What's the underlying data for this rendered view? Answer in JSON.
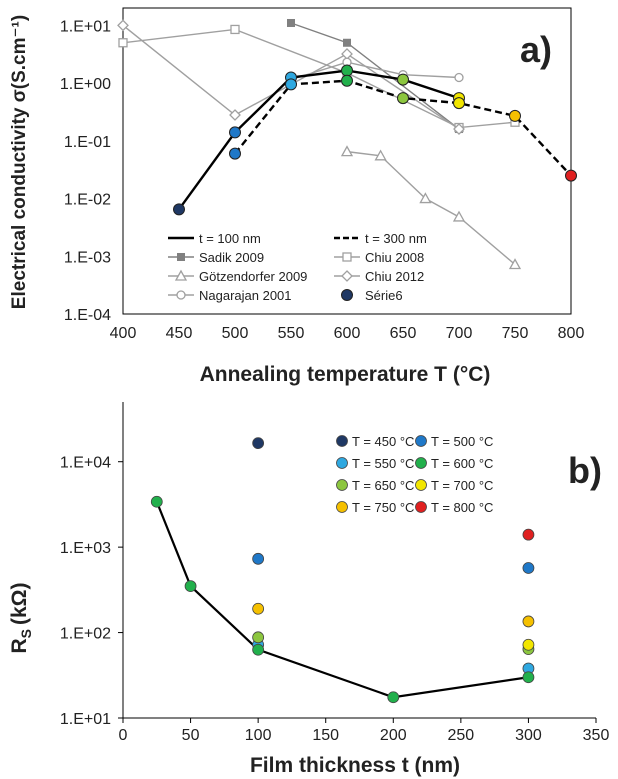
{
  "chart_data": [
    {
      "type": "line",
      "panel_label": "a)",
      "xlabel": "Annealing temperature T (°C)",
      "ylabel": "Electrical conductivity σ(S.cm⁻¹)",
      "xlim": [
        400,
        800
      ],
      "ylim": [
        0.0001,
        20
      ],
      "yscale": "log",
      "grid": false,
      "x_ticks": [
        400,
        450,
        500,
        550,
        600,
        650,
        700,
        750,
        800
      ],
      "y_ticks": [
        10,
        1,
        0.1,
        0.01,
        0.001,
        0.0001
      ],
      "y_tick_labels": [
        "1.E+01",
        "1.E+00",
        "1.E-01",
        "1.E-02",
        "1.E-03",
        "1.E-04"
      ],
      "legend_placement": "bottom-left",
      "series": [
        {
          "name": "t = 100 nm",
          "color": "#000000",
          "dash": "solid",
          "marker": "colored-circle",
          "x": [
            450,
            500,
            550,
            600,
            650,
            700
          ],
          "y": [
            0.0065,
            0.14,
            1.25,
            1.65,
            1.15,
            0.55
          ]
        },
        {
          "name": "t = 300 nm",
          "color": "#000000",
          "dash": "dashed",
          "marker": "colored-circle",
          "x": [
            500,
            550,
            600,
            650,
            700,
            750,
            800
          ],
          "y": [
            0.06,
            0.95,
            1.1,
            0.55,
            0.45,
            0.27,
            0.025
          ]
        },
        {
          "name": "Sadik 2009",
          "color": "#808080",
          "marker": "filled-square",
          "x": [
            550,
            600,
            700
          ],
          "y": [
            11,
            5,
            0.16
          ]
        },
        {
          "name": "Chiu 2008",
          "color": "#a0a0a0",
          "marker": "open-square",
          "x": [
            400,
            500,
            600,
            700,
            750
          ],
          "y": [
            5,
            8.5,
            1.5,
            0.17,
            0.21
          ]
        },
        {
          "name": "Götzendorfer 2009",
          "color": "#a0a0a0",
          "marker": "open-triangle",
          "x": [
            600,
            630,
            670,
            700,
            750
          ],
          "y": [
            0.065,
            0.055,
            0.01,
            0.0048,
            0.00072
          ]
        },
        {
          "name": "Chiu 2012",
          "color": "#a0a0a0",
          "marker": "open-diamond",
          "x": [
            400,
            500,
            600,
            700
          ],
          "y": [
            10,
            0.28,
            3.2,
            0.16
          ]
        },
        {
          "name": "Nagarajan 2001",
          "color": "#a0a0a0",
          "marker": "open-circle",
          "x": [
            550,
            600,
            650,
            700
          ],
          "y": [
            1.15,
            2.3,
            1.4,
            1.25
          ]
        },
        {
          "name": "Série6",
          "color": "#1f3864",
          "marker": "filled-circle",
          "x": [],
          "y": []
        }
      ],
      "point_colors_by_temperature": {
        "450": "#1f3864",
        "500": "#1f78c8",
        "550": "#2fa8e0",
        "600": "#22b04c",
        "650": "#8cc63f",
        "700": "#f2e600",
        "750": "#f5c000",
        "800": "#e02020"
      }
    },
    {
      "type": "scatter",
      "panel_label": "b)",
      "xlabel": "Film thickness t (nm)",
      "ylabel": "R",
      "ylabel_subscript": "S",
      "ylabel_unit": "(kΩ)",
      "xlim": [
        0,
        350
      ],
      "ylim": [
        10,
        50000
      ],
      "yscale": "log",
      "grid": false,
      "x_ticks": [
        0,
        50,
        100,
        150,
        200,
        250,
        300,
        350
      ],
      "y_ticks": [
        10000,
        1000,
        100,
        10
      ],
      "y_tick_labels": [
        "1.E+04",
        "1.E+03",
        "1.E+02",
        "1.E+01"
      ],
      "legend_placement": "top-right",
      "line_series": {
        "color": "#000000",
        "x": [
          25,
          50,
          100,
          200,
          300
        ],
        "y": [
          3400,
          350,
          63,
          17.5,
          30
        ]
      },
      "series": [
        {
          "name": "T = 450 °C",
          "color": "#1f3864",
          "x": [
            100
          ],
          "y": [
            16500
          ]
        },
        {
          "name": "T = 500 °C",
          "color": "#1f78c8",
          "x": [
            100,
            300
          ],
          "y": [
            730,
            570
          ]
        },
        {
          "name": "T = 550 °C",
          "color": "#2fa8e0",
          "x": [
            100,
            300
          ],
          "y": [
            72,
            38
          ]
        },
        {
          "name": "T = 600 °C",
          "color": "#22b04c",
          "x": [
            25,
            50,
            100,
            200,
            300
          ],
          "y": [
            3400,
            350,
            63,
            17.5,
            30
          ]
        },
        {
          "name": "T = 650 °C",
          "color": "#8cc63f",
          "x": [
            100,
            300
          ],
          "y": [
            88,
            64
          ]
        },
        {
          "name": "T = 700 °C",
          "color": "#f2e600",
          "x": [
            300
          ],
          "y": [
            72
          ]
        },
        {
          "name": "T = 750 °C",
          "color": "#f5c000",
          "x": [
            100,
            300
          ],
          "y": [
            190,
            135
          ]
        },
        {
          "name": "T = 800 °C",
          "color": "#e02020",
          "x": [
            300
          ],
          "y": [
            1400
          ]
        }
      ]
    }
  ]
}
